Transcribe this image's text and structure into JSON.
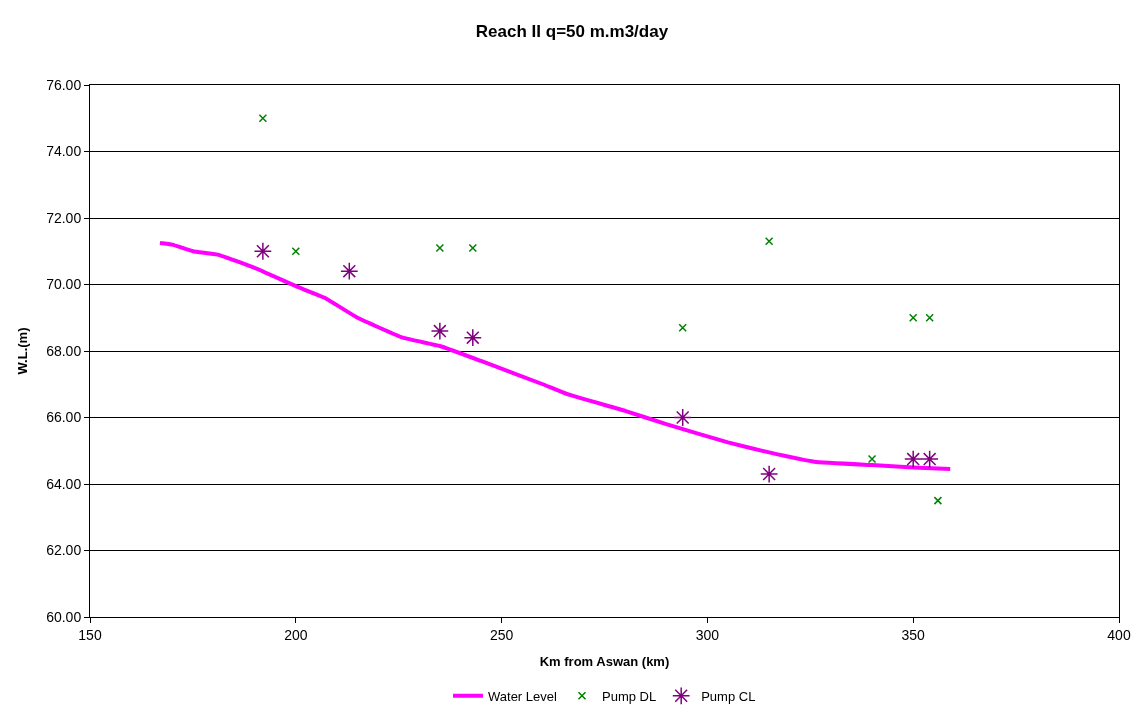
{
  "chart_data": {
    "type": "line",
    "title": "Reach II q=50 m.m3/day",
    "xlabel": "Km from Aswan (km)",
    "ylabel": "W.L.(m)",
    "xlim": [
      150,
      400
    ],
    "xticks": [
      150,
      200,
      250,
      300,
      350,
      400
    ],
    "ylim": [
      60,
      76
    ],
    "yticks": [
      {
        "value": 60,
        "label": "60.00"
      },
      {
        "value": 62,
        "label": "62.00"
      },
      {
        "value": 64,
        "label": "64.00"
      },
      {
        "value": 66,
        "label": "66.00"
      },
      {
        "value": 68,
        "label": "68.00"
      },
      {
        "value": 70,
        "label": "70.00"
      },
      {
        "value": 72,
        "label": "72.00"
      },
      {
        "value": 74,
        "label": "74.00"
      },
      {
        "value": 76,
        "label": "76.00"
      }
    ],
    "grid": "y",
    "legend": "bottom",
    "series": [
      {
        "name": "Water Level",
        "color": "#ff00ff",
        "marker": "none",
        "line_style": "solid",
        "x": [
          167,
          170,
          175,
          181,
          190,
          200,
          207,
          215,
          226,
          235,
          245,
          260,
          266,
          280,
          290,
          305,
          315,
          326,
          340,
          350,
          359
        ],
        "values": [
          71.25,
          71.2,
          71.0,
          70.9,
          70.5,
          69.95,
          69.6,
          69.0,
          68.4,
          68.15,
          67.7,
          67.0,
          66.7,
          66.2,
          65.8,
          65.25,
          64.95,
          64.67,
          64.57,
          64.5,
          64.45
        ]
      },
      {
        "name": "Pump DL",
        "type": "scatter",
        "color": "#008000",
        "marker": "cross",
        "x": [
          192,
          200,
          235,
          243,
          294,
          315,
          340,
          350,
          354,
          356
        ],
        "values": [
          75.0,
          71.0,
          71.1,
          71.1,
          68.7,
          71.3,
          64.75,
          69.0,
          69.0,
          63.5
        ]
      },
      {
        "name": "Pump CL",
        "type": "scatter",
        "color": "#800080",
        "marker": "cross",
        "x": [
          192,
          213,
          235,
          243,
          294,
          315,
          350,
          354
        ],
        "values": [
          71.0,
          70.4,
          68.6,
          68.4,
          66.0,
          64.3,
          64.75,
          64.75
        ]
      }
    ]
  }
}
